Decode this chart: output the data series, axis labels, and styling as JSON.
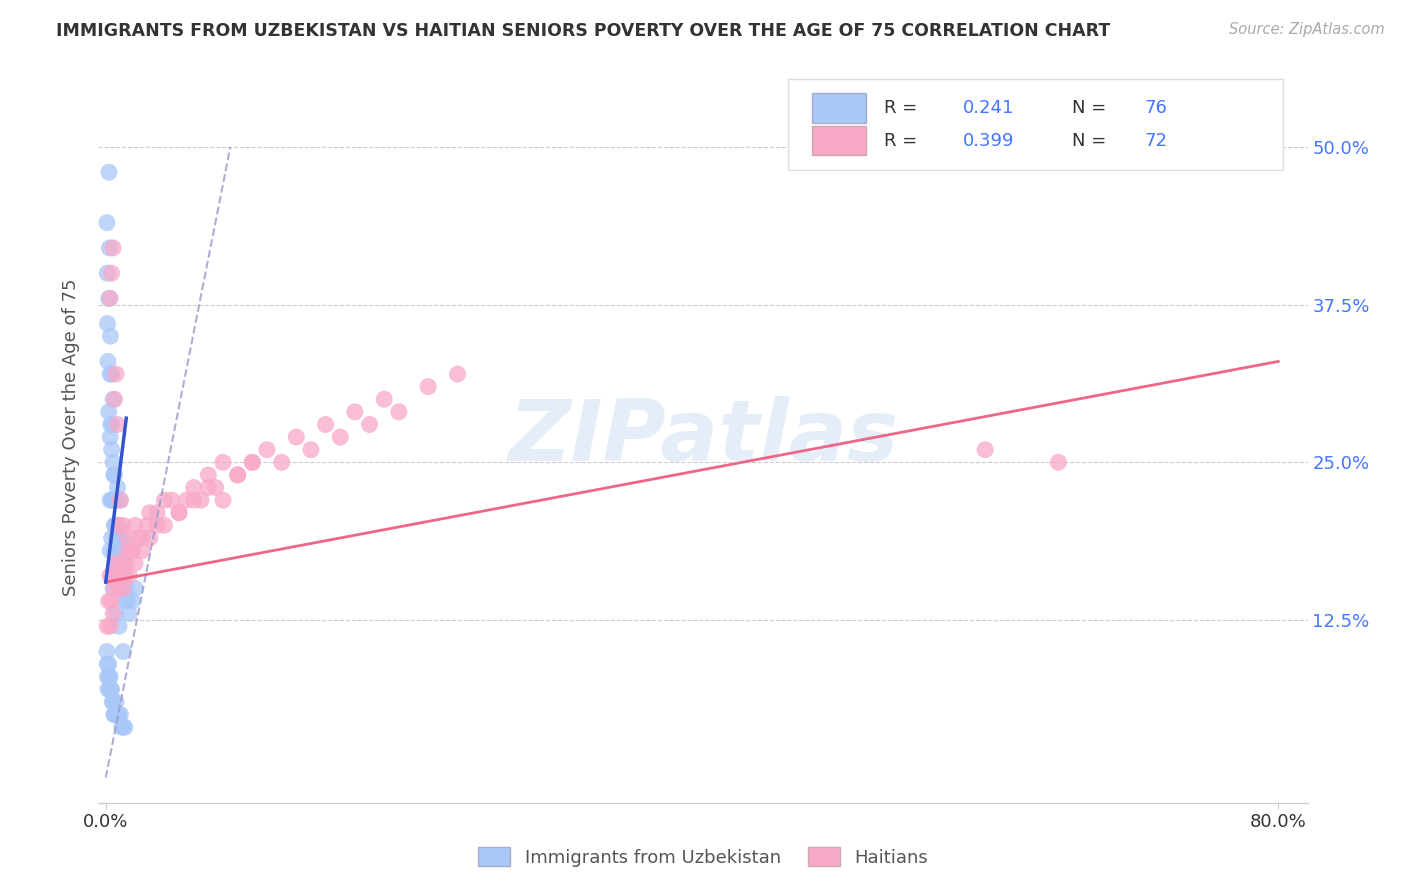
{
  "title": "IMMIGRANTS FROM UZBEKISTAN VS HAITIAN SENIORS POVERTY OVER THE AGE OF 75 CORRELATION CHART",
  "source_text": "Source: ZipAtlas.com",
  "ylabel": "Seniors Poverty Over the Age of 75",
  "ytick_labels": [
    "12.5%",
    "25.0%",
    "37.5%",
    "50.0%"
  ],
  "ytick_values": [
    0.125,
    0.25,
    0.375,
    0.5
  ],
  "xlim": [
    -0.005,
    0.82
  ],
  "ylim": [
    -0.02,
    0.56
  ],
  "color_uzbek": "#a8c8f8",
  "color_haitian": "#f8a8c8",
  "color_uzbek_line": "#3355cc",
  "color_haitian_line": "#ee6688",
  "color_dashed": "#9999cc",
  "watermark": "ZIPatlas",
  "uzbek_x": [
    0.0008,
    0.001,
    0.0012,
    0.0015,
    0.002,
    0.002,
    0.0022,
    0.0025,
    0.003,
    0.003,
    0.003,
    0.0032,
    0.0035,
    0.004,
    0.004,
    0.004,
    0.004,
    0.0042,
    0.005,
    0.005,
    0.005,
    0.0055,
    0.006,
    0.006,
    0.006,
    0.006,
    0.0062,
    0.007,
    0.007,
    0.007,
    0.0075,
    0.008,
    0.008,
    0.008,
    0.009,
    0.009,
    0.01,
    0.01,
    0.01,
    0.011,
    0.011,
    0.012,
    0.012,
    0.013,
    0.013,
    0.014,
    0.015,
    0.016,
    0.018,
    0.02,
    0.0008,
    0.001,
    0.0012,
    0.0015,
    0.002,
    0.0022,
    0.0025,
    0.003,
    0.0035,
    0.004,
    0.0045,
    0.005,
    0.0055,
    0.006,
    0.007,
    0.008,
    0.009,
    0.01,
    0.011,
    0.012,
    0.013,
    0.003,
    0.005,
    0.007,
    0.009,
    0.012
  ],
  "uzbek_y": [
    0.44,
    0.4,
    0.36,
    0.33,
    0.38,
    0.29,
    0.48,
    0.42,
    0.32,
    0.27,
    0.22,
    0.35,
    0.28,
    0.26,
    0.22,
    0.19,
    0.32,
    0.28,
    0.25,
    0.22,
    0.3,
    0.24,
    0.22,
    0.2,
    0.18,
    0.24,
    0.2,
    0.22,
    0.19,
    0.17,
    0.2,
    0.19,
    0.17,
    0.23,
    0.19,
    0.16,
    0.18,
    0.16,
    0.22,
    0.19,
    0.16,
    0.17,
    0.15,
    0.16,
    0.14,
    0.15,
    0.14,
    0.13,
    0.14,
    0.15,
    0.1,
    0.09,
    0.08,
    0.07,
    0.09,
    0.08,
    0.07,
    0.08,
    0.07,
    0.07,
    0.06,
    0.06,
    0.05,
    0.05,
    0.06,
    0.05,
    0.05,
    0.05,
    0.04,
    0.04,
    0.04,
    0.18,
    0.15,
    0.13,
    0.12,
    0.1
  ],
  "haitian_x": [
    0.001,
    0.002,
    0.003,
    0.003,
    0.004,
    0.005,
    0.005,
    0.006,
    0.007,
    0.008,
    0.009,
    0.01,
    0.011,
    0.012,
    0.013,
    0.014,
    0.015,
    0.016,
    0.018,
    0.02,
    0.022,
    0.025,
    0.028,
    0.03,
    0.035,
    0.04,
    0.045,
    0.05,
    0.055,
    0.06,
    0.065,
    0.07,
    0.075,
    0.08,
    0.09,
    0.1,
    0.11,
    0.12,
    0.13,
    0.14,
    0.15,
    0.16,
    0.17,
    0.18,
    0.19,
    0.2,
    0.22,
    0.24,
    0.003,
    0.004,
    0.005,
    0.006,
    0.007,
    0.008,
    0.009,
    0.01,
    0.012,
    0.015,
    0.018,
    0.02,
    0.025,
    0.03,
    0.035,
    0.04,
    0.05,
    0.06,
    0.07,
    0.08,
    0.09,
    0.1,
    0.6,
    0.65
  ],
  "haitian_y": [
    0.12,
    0.14,
    0.16,
    0.12,
    0.14,
    0.16,
    0.13,
    0.15,
    0.17,
    0.16,
    0.15,
    0.16,
    0.17,
    0.15,
    0.16,
    0.17,
    0.18,
    0.16,
    0.18,
    0.17,
    0.19,
    0.18,
    0.2,
    0.19,
    0.21,
    0.2,
    0.22,
    0.21,
    0.22,
    0.23,
    0.22,
    0.24,
    0.23,
    0.25,
    0.24,
    0.25,
    0.26,
    0.25,
    0.27,
    0.26,
    0.28,
    0.27,
    0.29,
    0.28,
    0.3,
    0.29,
    0.31,
    0.32,
    0.38,
    0.4,
    0.42,
    0.3,
    0.32,
    0.28,
    0.2,
    0.22,
    0.2,
    0.19,
    0.18,
    0.2,
    0.19,
    0.21,
    0.2,
    0.22,
    0.21,
    0.22,
    0.23,
    0.22,
    0.24,
    0.25,
    0.26,
    0.25
  ]
}
